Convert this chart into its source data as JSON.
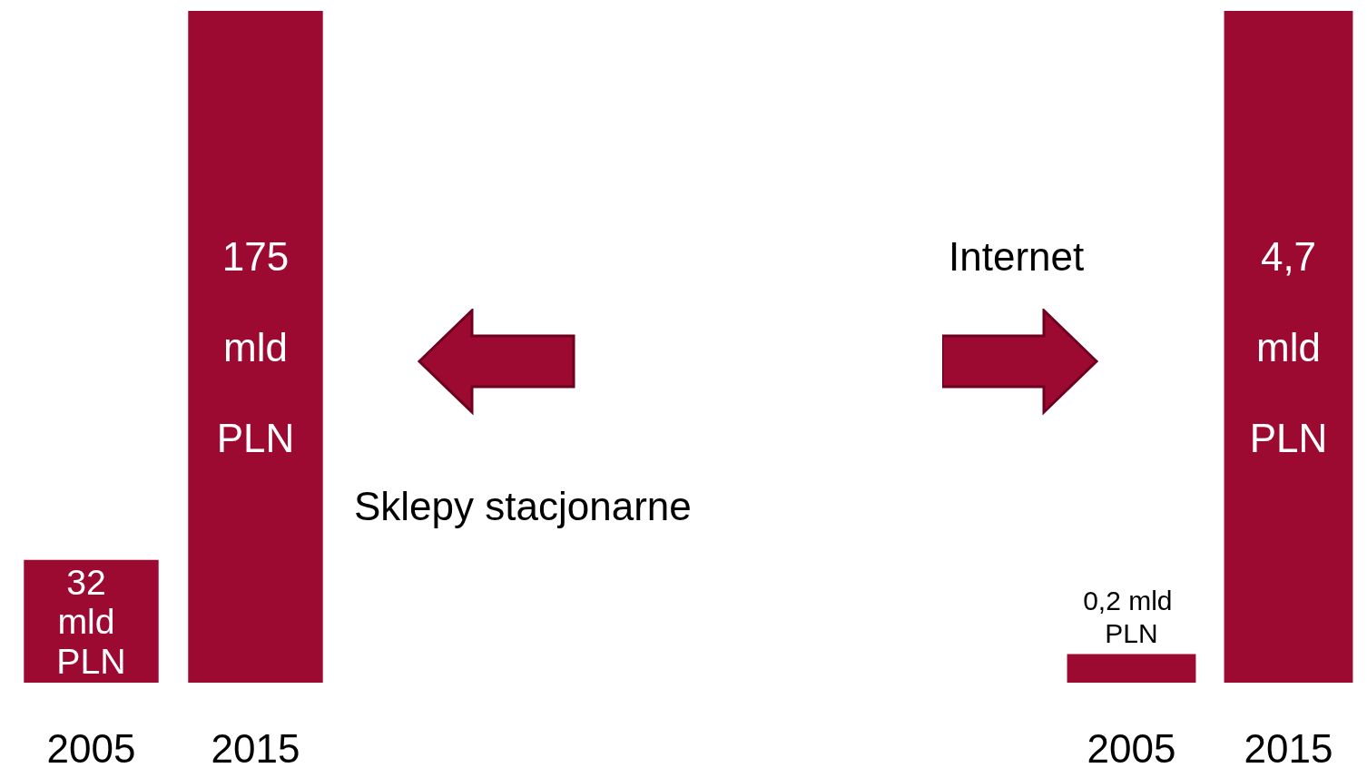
{
  "chart_data": [
    {
      "type": "bar",
      "title": "Sklepy stacjonarne",
      "categories": [
        "2005",
        "2015"
      ],
      "values": [
        32,
        175
      ],
      "value_labels": [
        "32 mld PLN",
        "175 mld PLN"
      ],
      "color": "#9c0a31"
    },
    {
      "type": "bar",
      "title": "Internet",
      "categories": [
        "2005",
        "2015"
      ],
      "values": [
        0.2,
        4.7
      ],
      "value_labels": [
        "0,2 mld PLN",
        "4,7 mld PLN"
      ],
      "color": "#9c0a31"
    }
  ]
}
